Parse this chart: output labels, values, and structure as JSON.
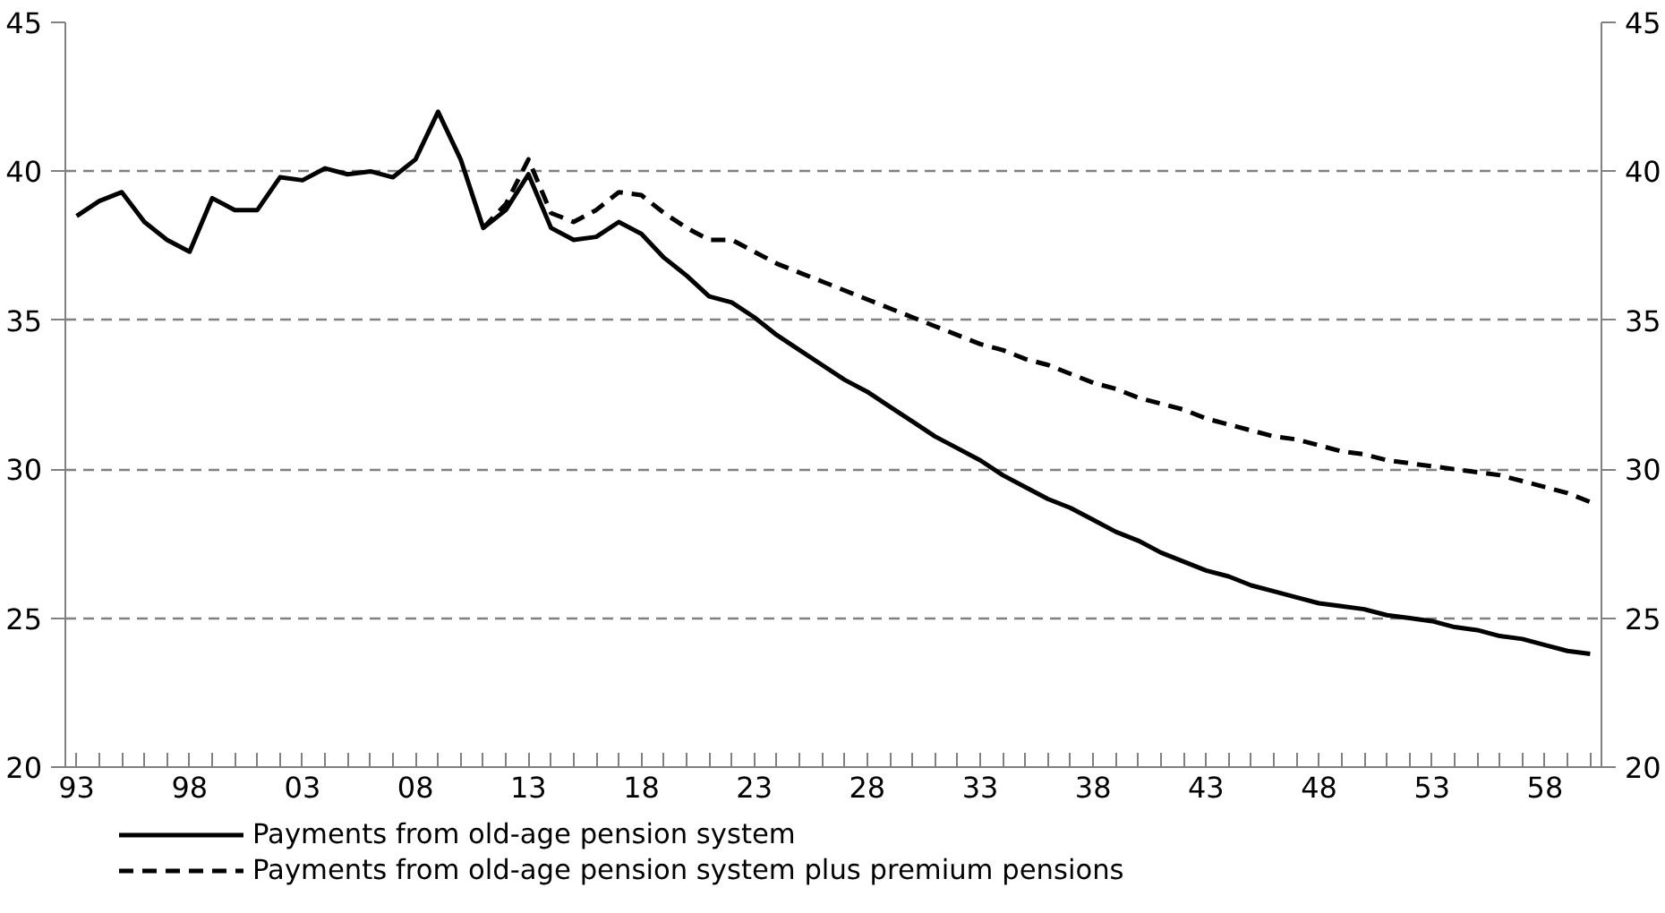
{
  "chart_data": {
    "type": "line",
    "x": [
      1993,
      1994,
      1995,
      1996,
      1997,
      1998,
      1999,
      2000,
      2001,
      2002,
      2003,
      2004,
      2005,
      2006,
      2007,
      2008,
      2009,
      2010,
      2011,
      2012,
      2013,
      2014,
      2015,
      2016,
      2017,
      2018,
      2019,
      2020,
      2021,
      2022,
      2023,
      2024,
      2025,
      2026,
      2027,
      2028,
      2029,
      2030,
      2031,
      2032,
      2033,
      2034,
      2035,
      2036,
      2037,
      2038,
      2039,
      2040,
      2041,
      2042,
      2043,
      2044,
      2045,
      2046,
      2047,
      2048,
      2049,
      2050,
      2051,
      2052,
      2053,
      2054,
      2055,
      2056,
      2057,
      2058,
      2059,
      2060
    ],
    "series": [
      {
        "name": "Payments from old-age pension system",
        "color": "#000000",
        "line_style": "solid",
        "values": [
          38.5,
          39.0,
          39.3,
          38.3,
          37.7,
          37.3,
          39.1,
          38.7,
          38.7,
          39.8,
          39.7,
          40.1,
          39.9,
          40.0,
          39.8,
          40.4,
          42.0,
          40.4,
          38.1,
          38.7,
          39.9,
          38.1,
          37.7,
          37.8,
          38.3,
          37.9,
          37.1,
          36.5,
          35.8,
          35.6,
          35.1,
          34.5,
          34.0,
          33.5,
          33.0,
          32.6,
          32.1,
          31.6,
          31.1,
          30.7,
          30.3,
          29.8,
          29.4,
          29.0,
          28.7,
          28.3,
          27.9,
          27.6,
          27.2,
          26.9,
          26.6,
          26.4,
          26.1,
          25.9,
          25.7,
          25.5,
          25.4,
          25.3,
          25.1,
          25.0,
          24.9,
          24.7,
          24.6,
          24.4,
          24.3,
          24.1,
          23.9,
          23.8
        ]
      },
      {
        "name": "Payments from old-age pension system plus premium pensions",
        "color": "#000000",
        "line_style": "dashed",
        "values": [
          null,
          null,
          null,
          null,
          null,
          null,
          null,
          null,
          null,
          null,
          null,
          null,
          null,
          null,
          null,
          null,
          null,
          null,
          38.1,
          38.9,
          40.4,
          38.6,
          38.3,
          38.7,
          39.3,
          39.2,
          38.6,
          38.1,
          37.7,
          37.7,
          37.3,
          36.9,
          36.6,
          36.3,
          36.0,
          35.7,
          35.4,
          35.1,
          34.8,
          34.5,
          34.2,
          34.0,
          33.7,
          33.5,
          33.2,
          32.9,
          32.7,
          32.4,
          32.2,
          32.0,
          31.7,
          31.5,
          31.3,
          31.1,
          31.0,
          30.8,
          30.6,
          30.5,
          30.3,
          30.2,
          30.1,
          30.0,
          29.9,
          29.8,
          29.6,
          29.4,
          29.2,
          28.9
        ]
      }
    ],
    "xlim": [
      1992.5,
      2060.5
    ],
    "xticks": [
      {
        "value": 1993,
        "label": "93"
      },
      {
        "value": 1994,
        "label": null
      },
      {
        "value": 1995,
        "label": null
      },
      {
        "value": 1996,
        "label": null
      },
      {
        "value": 1997,
        "label": null
      },
      {
        "value": 1998,
        "label": "98"
      },
      {
        "value": 1999,
        "label": null
      },
      {
        "value": 2000,
        "label": null
      },
      {
        "value": 2001,
        "label": null
      },
      {
        "value": 2002,
        "label": null
      },
      {
        "value": 2003,
        "label": "03"
      },
      {
        "value": 2004,
        "label": null
      },
      {
        "value": 2005,
        "label": null
      },
      {
        "value": 2006,
        "label": null
      },
      {
        "value": 2007,
        "label": null
      },
      {
        "value": 2008,
        "label": "08"
      },
      {
        "value": 2009,
        "label": null
      },
      {
        "value": 2010,
        "label": null
      },
      {
        "value": 2011,
        "label": null
      },
      {
        "value": 2012,
        "label": null
      },
      {
        "value": 2013,
        "label": "13"
      },
      {
        "value": 2014,
        "label": null
      },
      {
        "value": 2015,
        "label": null
      },
      {
        "value": 2016,
        "label": null
      },
      {
        "value": 2017,
        "label": null
      },
      {
        "value": 2018,
        "label": "18"
      },
      {
        "value": 2019,
        "label": null
      },
      {
        "value": 2020,
        "label": null
      },
      {
        "value": 2021,
        "label": null
      },
      {
        "value": 2022,
        "label": null
      },
      {
        "value": 2023,
        "label": "23"
      },
      {
        "value": 2024,
        "label": null
      },
      {
        "value": 2025,
        "label": null
      },
      {
        "value": 2026,
        "label": null
      },
      {
        "value": 2027,
        "label": null
      },
      {
        "value": 2028,
        "label": "28"
      },
      {
        "value": 2029,
        "label": null
      },
      {
        "value": 2030,
        "label": null
      },
      {
        "value": 2031,
        "label": null
      },
      {
        "value": 2032,
        "label": null
      },
      {
        "value": 2033,
        "label": "33"
      },
      {
        "value": 2034,
        "label": null
      },
      {
        "value": 2035,
        "label": null
      },
      {
        "value": 2036,
        "label": null
      },
      {
        "value": 2037,
        "label": null
      },
      {
        "value": 2038,
        "label": "38"
      },
      {
        "value": 2039,
        "label": null
      },
      {
        "value": 2040,
        "label": null
      },
      {
        "value": 2041,
        "label": null
      },
      {
        "value": 2042,
        "label": null
      },
      {
        "value": 2043,
        "label": "43"
      },
      {
        "value": 2044,
        "label": null
      },
      {
        "value": 2045,
        "label": null
      },
      {
        "value": 2046,
        "label": null
      },
      {
        "value": 2047,
        "label": null
      },
      {
        "value": 2048,
        "label": "48"
      },
      {
        "value": 2049,
        "label": null
      },
      {
        "value": 2050,
        "label": null
      },
      {
        "value": 2051,
        "label": null
      },
      {
        "value": 2052,
        "label": null
      },
      {
        "value": 2053,
        "label": "53"
      },
      {
        "value": 2054,
        "label": null
      },
      {
        "value": 2055,
        "label": null
      },
      {
        "value": 2056,
        "label": null
      },
      {
        "value": 2057,
        "label": null
      },
      {
        "value": 2058,
        "label": "58"
      },
      {
        "value": 2059,
        "label": null
      },
      {
        "value": 2060,
        "label": null
      }
    ],
    "ylim": [
      20,
      45
    ],
    "yticks": [
      20,
      25,
      30,
      35,
      40,
      45
    ],
    "y2lim": [
      20,
      45
    ],
    "y2ticks": [
      20,
      25,
      30,
      35,
      40,
      45
    ],
    "grid": "y",
    "legend": "bottom",
    "marker": "none"
  }
}
